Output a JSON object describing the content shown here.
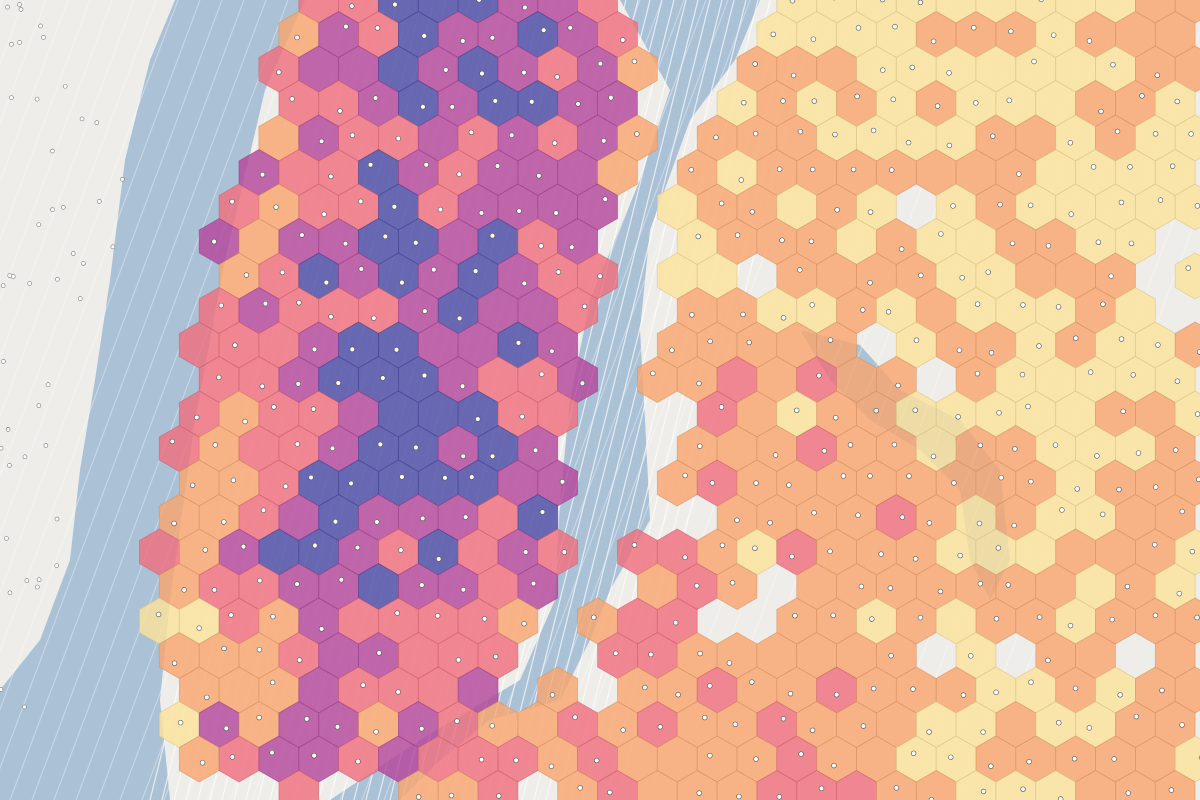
{
  "hexbin": {
    "colors": [
      "#fbe29b",
      "#f9a66f",
      "#ef6f7e",
      "#b5479c",
      "#4b4aa6"
    ],
    "opacity": 0.82
  }
}
